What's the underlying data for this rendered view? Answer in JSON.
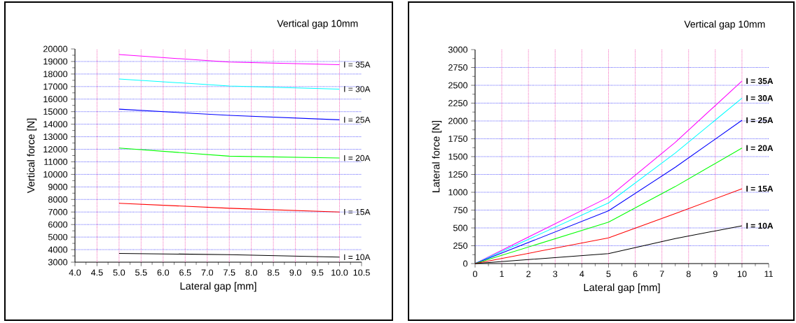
{
  "chart_data": [
    {
      "type": "line",
      "title": "Vertical gap 10mm",
      "xlabel": "Lateral gap [mm]",
      "ylabel": "Vertical force [N]",
      "x": [
        5,
        7.5,
        10
      ],
      "series": [
        {
          "name": "I = 35A",
          "color": "#ff00ff",
          "values": [
            19550,
            18950,
            18750
          ]
        },
        {
          "name": "I = 30A",
          "color": "#00ffff",
          "values": [
            17600,
            17050,
            16800
          ]
        },
        {
          "name": "I = 25A",
          "color": "#0000ff",
          "values": [
            15200,
            14700,
            14350
          ]
        },
        {
          "name": "I = 20A",
          "color": "#00ff00",
          "values": [
            12100,
            11450,
            11300
          ]
        },
        {
          "name": "I = 15A",
          "color": "#ff0000",
          "values": [
            7700,
            7300,
            7000
          ]
        },
        {
          "name": "I = 10A",
          "color": "#000000",
          "values": [
            3700,
            3600,
            3400
          ]
        }
      ],
      "xlim": [
        4,
        10.5
      ],
      "ylim": [
        3000,
        20000
      ],
      "xticks": [
        {
          "value": 4,
          "label": "4.0"
        },
        4.5,
        {
          "value": 5,
          "label": "5.0"
        },
        5.5,
        {
          "value": 6,
          "label": "6.0"
        },
        6.5,
        {
          "value": 7,
          "label": "7.0"
        },
        7.5,
        {
          "value": 8,
          "label": "8.0"
        },
        8.5,
        {
          "value": 9,
          "label": "9.0"
        },
        9.5,
        {
          "value": 10,
          "label": "10.0"
        },
        10.5
      ],
      "yticks": [
        3000,
        4000,
        5000,
        6000,
        7000,
        8000,
        9000,
        10000,
        11000,
        12000,
        13000,
        14000,
        15000,
        16000,
        17000,
        18000,
        19000,
        20000
      ],
      "grid": true
    },
    {
      "type": "line",
      "title": "Vertical gap 10mm",
      "xlabel": "Lateral gap [mm]",
      "ylabel": "Lateral force [N]",
      "x": [
        0,
        5,
        7.5,
        10
      ],
      "series": [
        {
          "name": "I = 35A",
          "color": "#ff00ff",
          "values": [
            0,
            930,
            1700,
            2560
          ]
        },
        {
          "name": "I = 30A",
          "color": "#00ffff",
          "values": [
            0,
            850,
            1550,
            2320
          ]
        },
        {
          "name": "I = 25A",
          "color": "#0000ff",
          "values": [
            0,
            740,
            1350,
            2010
          ]
        },
        {
          "name": "I = 20A",
          "color": "#00ff00",
          "values": [
            0,
            580,
            1080,
            1620
          ]
        },
        {
          "name": "I = 15A",
          "color": "#ff0000",
          "values": [
            0,
            360,
            700,
            1050
          ]
        },
        {
          "name": "I = 10A",
          "color": "#000000",
          "values": [
            0,
            140,
            350,
            530
          ]
        }
      ],
      "xlim": [
        0,
        11
      ],
      "ylim": [
        0,
        3000
      ],
      "xticks": [
        0,
        1,
        2,
        3,
        4,
        5,
        6,
        7,
        8,
        9,
        10,
        11
      ],
      "yticks": [
        0,
        250,
        500,
        750,
        1000,
        1250,
        1500,
        1750,
        2000,
        2250,
        2500,
        2750,
        3000
      ],
      "grid": true
    }
  ]
}
